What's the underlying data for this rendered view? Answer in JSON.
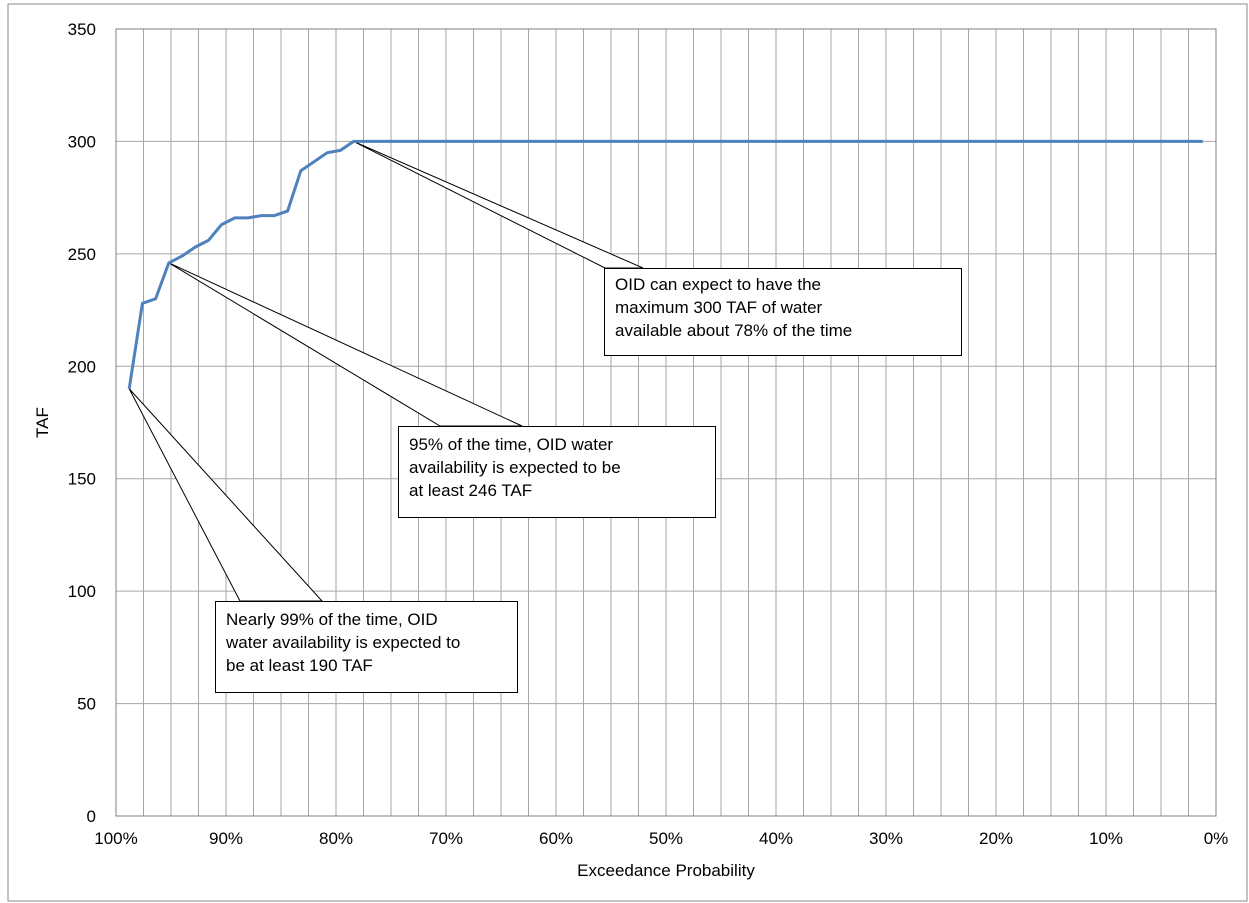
{
  "chart_data": {
    "type": "line",
    "title": "",
    "xlabel": "Exceedance Probability",
    "ylabel": "TAF",
    "xlim": [
      100,
      0
    ],
    "ylim": [
      0,
      350
    ],
    "x_ticks": [
      "100%",
      "90%",
      "80%",
      "70%",
      "60%",
      "50%",
      "40%",
      "30%",
      "20%",
      "10%",
      "0%"
    ],
    "y_ticks": [
      "0",
      "50",
      "100",
      "150",
      "200",
      "250",
      "300",
      "350"
    ],
    "grid": true,
    "legend": "none",
    "series_color": "#4f81bd",
    "series": [
      {
        "x": [
          98.8,
          97.6,
          96.4,
          95.2,
          94.0,
          92.8,
          91.6,
          90.4,
          89.2,
          88.0,
          86.8,
          85.6,
          84.4,
          83.2,
          82.0,
          80.8,
          79.6,
          78.4,
          70.0,
          60.0,
          50.0,
          40.0,
          30.0,
          20.0,
          10.0,
          1.2
        ],
        "y": [
          190,
          228,
          230,
          246,
          249,
          253,
          256,
          263,
          266,
          266,
          267,
          267,
          269,
          287,
          291,
          295,
          296,
          300,
          300,
          300,
          300,
          300,
          300,
          300,
          300,
          300
        ]
      }
    ],
    "annotations": [
      {
        "lines": [
          "OID can expect to have the",
          "maximum 300 TAF of water",
          "available about 78% of the time"
        ],
        "point": [
          78.4,
          300
        ]
      },
      {
        "lines": [
          "95% of the time, OID water",
          "availability is expected to be",
          "at least 246 TAF"
        ],
        "point": [
          95.2,
          246
        ]
      },
      {
        "lines": [
          "Nearly 99% of the time, OID",
          "water availability is expected to",
          "be at least 190 TAF"
        ],
        "point": [
          98.8,
          190
        ]
      }
    ]
  }
}
